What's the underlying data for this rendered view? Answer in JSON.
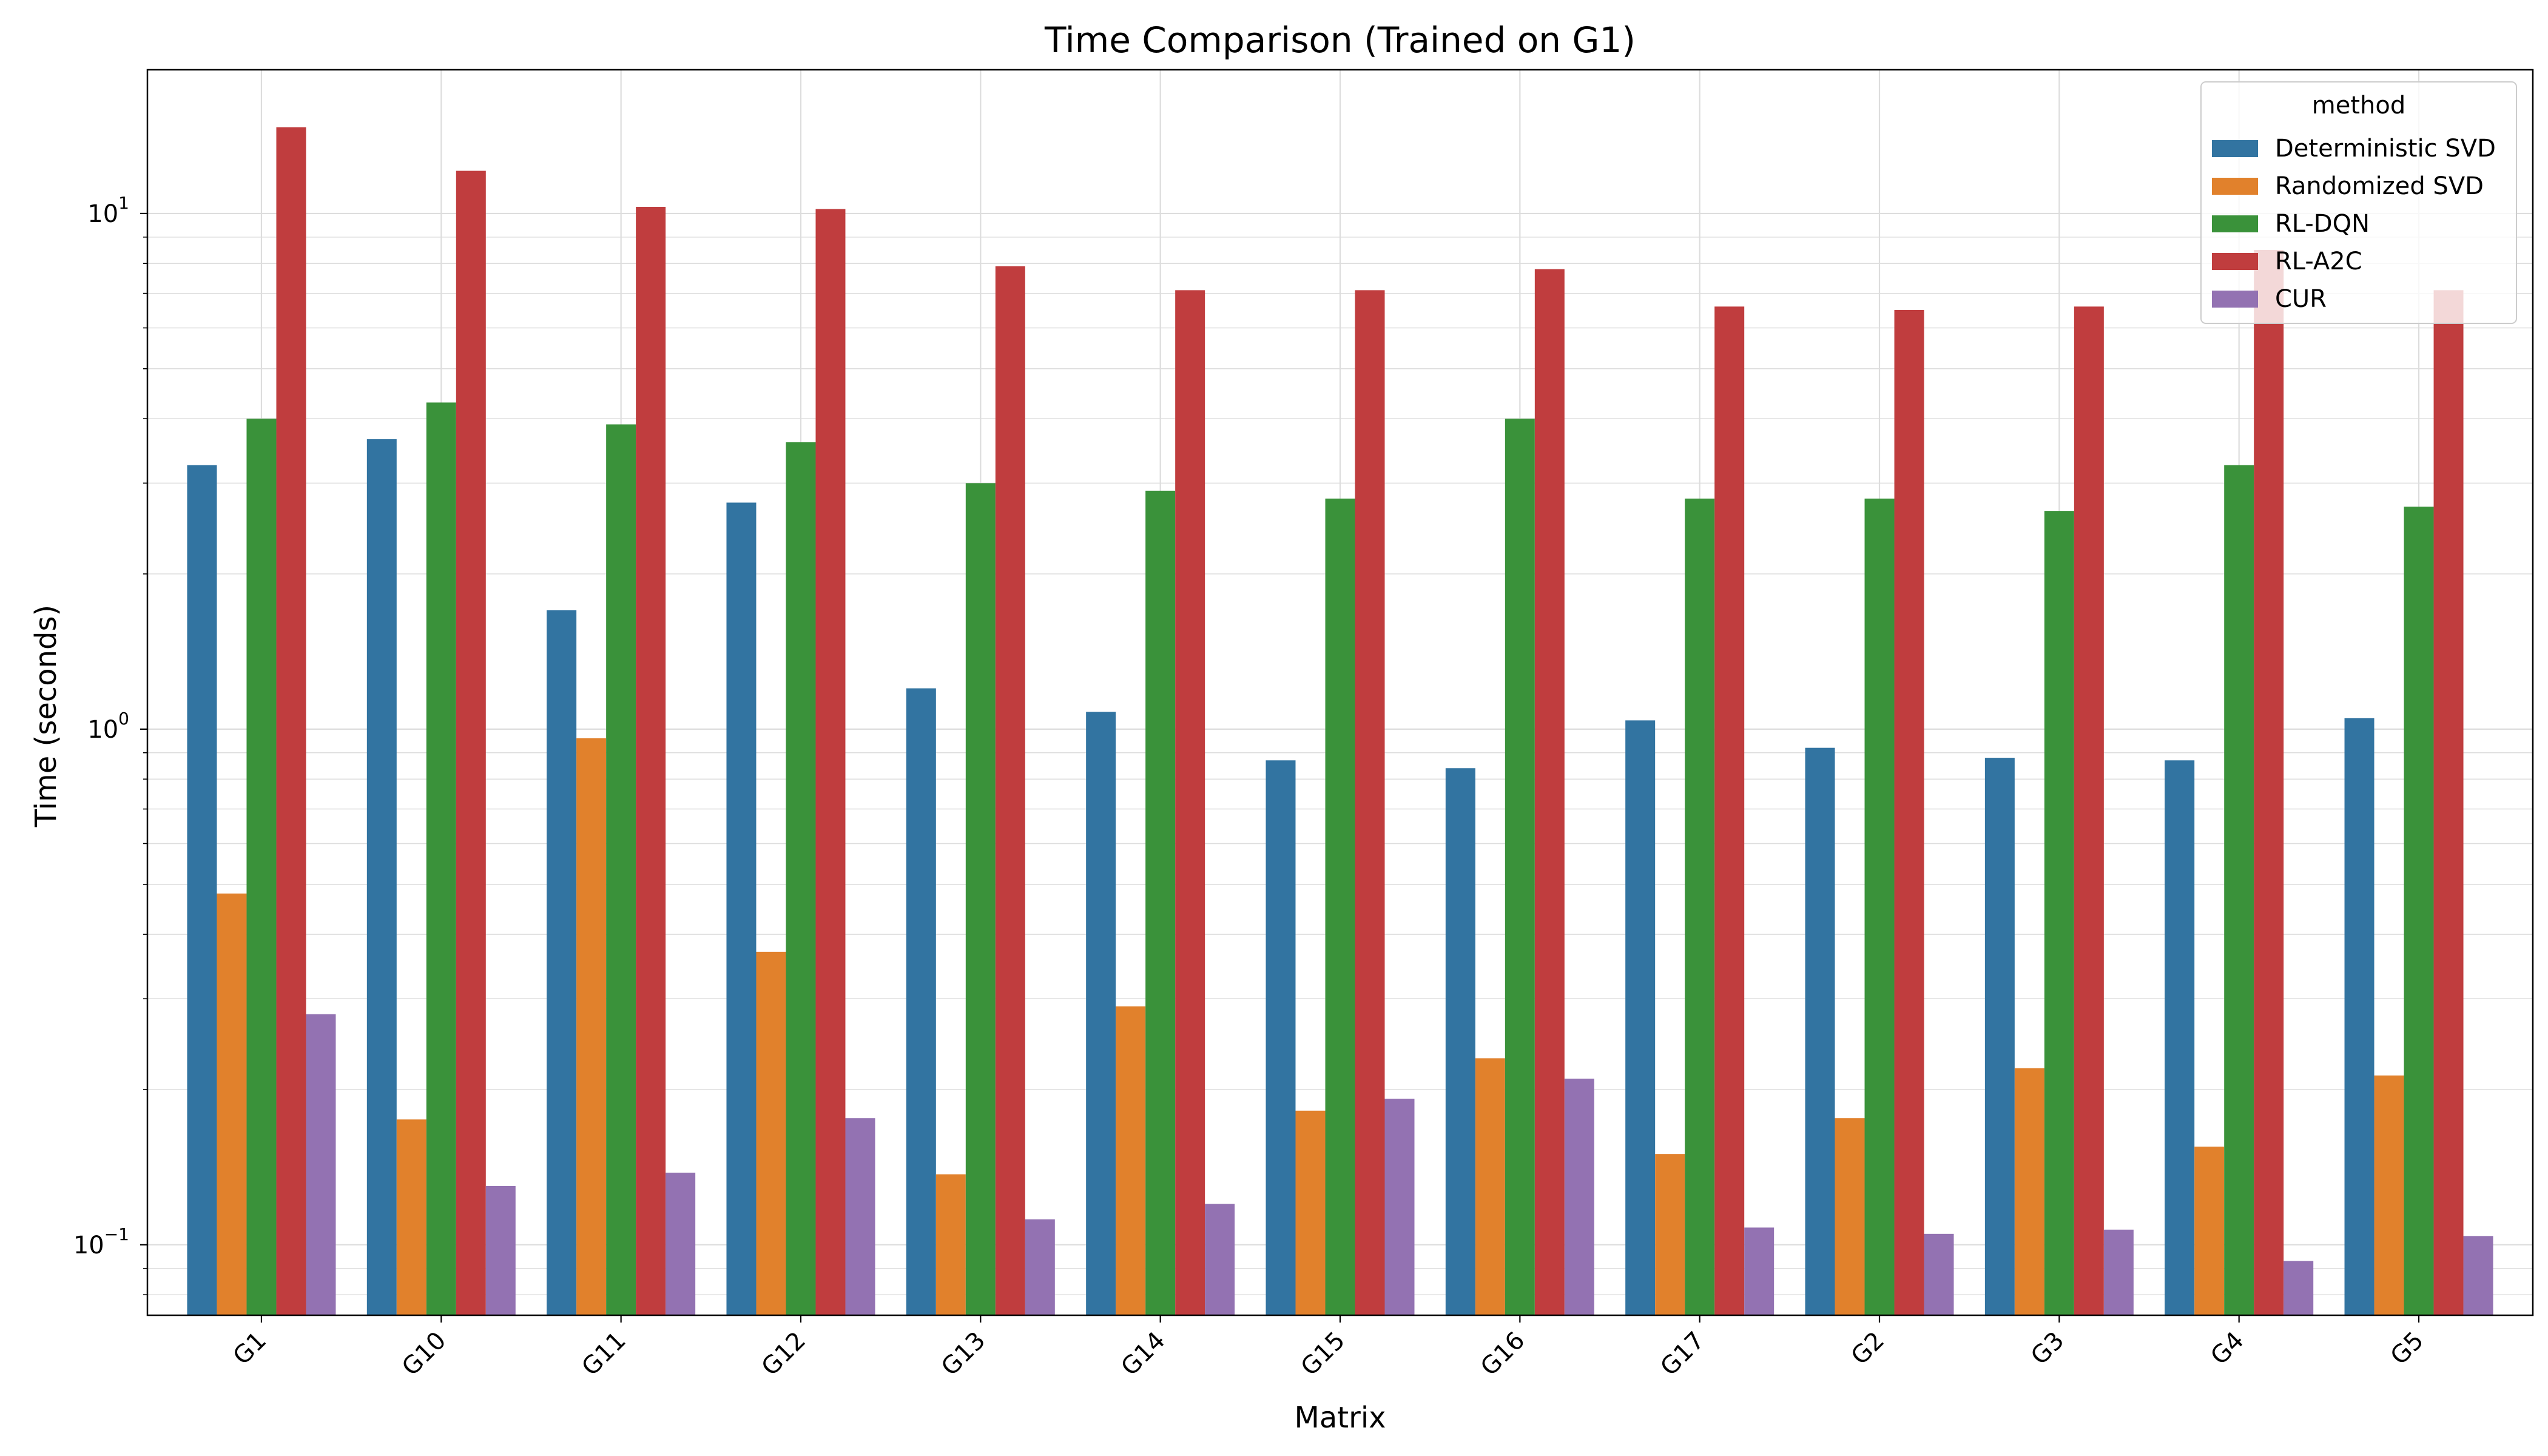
{
  "chart_data": {
    "type": "bar",
    "title": "Time Comparison (Trained on G1)",
    "xlabel": "Matrix",
    "ylabel": "Time (seconds)",
    "yscale": "log",
    "ylim": [
      0.073,
      19
    ],
    "grid": true,
    "legend": {
      "title": "method",
      "placement": "top-right"
    },
    "categories": [
      "G1",
      "G10",
      "G11",
      "G12",
      "G13",
      "G14",
      "G15",
      "G16",
      "G17",
      "G2",
      "G3",
      "G4",
      "G5"
    ],
    "y_ticks": [
      {
        "base": "10",
        "exp": "−1",
        "value": 0.1
      },
      {
        "base": "10",
        "exp": "0",
        "value": 1
      },
      {
        "base": "10",
        "exp": "1",
        "value": 10
      }
    ],
    "series": [
      {
        "name": "Deterministic SVD",
        "color": "#3274a1",
        "values": [
          3.25,
          3.65,
          1.7,
          2.75,
          1.2,
          1.08,
          0.87,
          0.84,
          1.04,
          0.92,
          0.88,
          0.87,
          1.05
        ]
      },
      {
        "name": "Randomized SVD",
        "color": "#e1812c",
        "values": [
          0.48,
          0.175,
          0.96,
          0.37,
          0.137,
          0.29,
          0.182,
          0.23,
          0.15,
          0.176,
          0.22,
          0.155,
          0.213
        ]
      },
      {
        "name": "RL-DQN",
        "color": "#3a923a",
        "values": [
          4.0,
          4.3,
          3.9,
          3.6,
          3.0,
          2.9,
          2.8,
          4.0,
          2.8,
          2.8,
          2.65,
          3.25,
          2.7
        ]
      },
      {
        "name": "RL-A2C",
        "color": "#c03d3e",
        "values": [
          14.7,
          12.1,
          10.3,
          10.2,
          7.9,
          7.1,
          7.1,
          7.8,
          6.6,
          6.5,
          6.6,
          8.5,
          7.1
        ]
      },
      {
        "name": "CUR",
        "color": "#9372b2",
        "values": [
          0.28,
          0.13,
          0.138,
          0.176,
          0.112,
          0.12,
          0.192,
          0.21,
          0.108,
          0.105,
          0.107,
          0.093,
          0.104
        ]
      }
    ]
  }
}
